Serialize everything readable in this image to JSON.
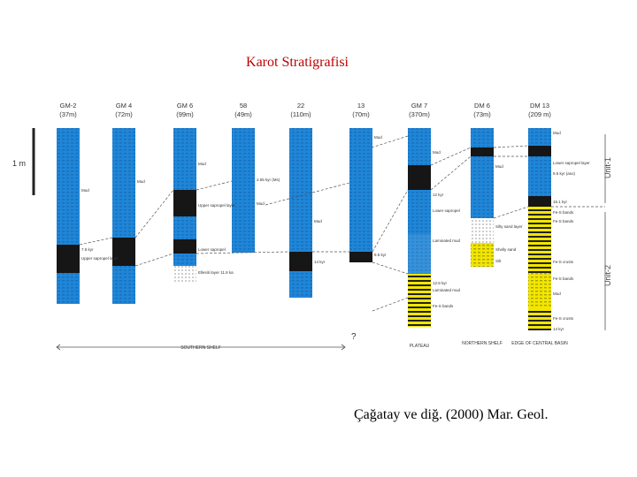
{
  "slide_title": "Karot Stratigrafisi",
  "citation": "Çağatay ve diğ. (2000) Mar. Geol.",
  "scale_label": "1 m",
  "colors": {
    "mud": "#1f86d8",
    "sapropel": "#161616",
    "sand": "#f2e600",
    "title": "#c00000"
  },
  "cores": [
    {
      "name": "GM-2",
      "length": "(37m)"
    },
    {
      "name": "GM 4",
      "length": "(72m)"
    },
    {
      "name": "GM 6",
      "length": "(99m)"
    },
    {
      "name": "58",
      "length": "(49m)"
    },
    {
      "name": "22",
      "length": "(110m)"
    },
    {
      "name": "13",
      "length": "(70m)"
    },
    {
      "name": "GM 7",
      "length": "(370m)"
    },
    {
      "name": "DM 6",
      "length": "(73m)"
    },
    {
      "name": "DM 13",
      "length": "(209 m)"
    }
  ],
  "annotations": {
    "a1": "Mud",
    "a2": "Mud",
    "a3": "Mud",
    "a4": "Mud",
    "a5": "Mud",
    "a6": "Mud",
    "a7": "Mud",
    "a8": "Mud",
    "a9": "Mud",
    "a10": "Mud",
    "b1": "7.5 kyr",
    "b2": "Upper sapropel layer",
    "b3": "Upper sapropel layer",
    "b4": "Lower sapropel",
    "b5": "Lower sapropel",
    "b6": "Lower sapropel layer",
    "b7": "Laminated mud",
    "b8": "Laminated mud",
    "c1": "2.55 kyr (Ms)",
    "c2": "14 kyr",
    "c3": "8.5 kyr",
    "c4": "12 kyr",
    "c5": "12.8 kyr",
    "c6": "15.1 kyr",
    "c7": "9.5 kyr (aso)",
    "d1": "Ellesiti layer 11.8 ka",
    "d2": "Silty sand layer",
    "d3": "Shelly sand",
    "d4": "Silt",
    "d5": "Fe-S bands",
    "d6": "Fe-S bands",
    "d7": "Fe-S bands",
    "d8": "Fe-S bands",
    "d9": "Fe-S crusts",
    "d10": "Fe-S crusts",
    "d11": "14 kyr",
    "question": "?"
  },
  "basins": {
    "southern": "SOUTHERN SHELF",
    "central_shelf": "PLATEAU",
    "northern": "NORTHERN SHELF",
    "central_basin": "EDGE OF CENTRAL BASIN"
  },
  "units": {
    "unit1": "Unit-1",
    "unit2": "Unit-2"
  }
}
